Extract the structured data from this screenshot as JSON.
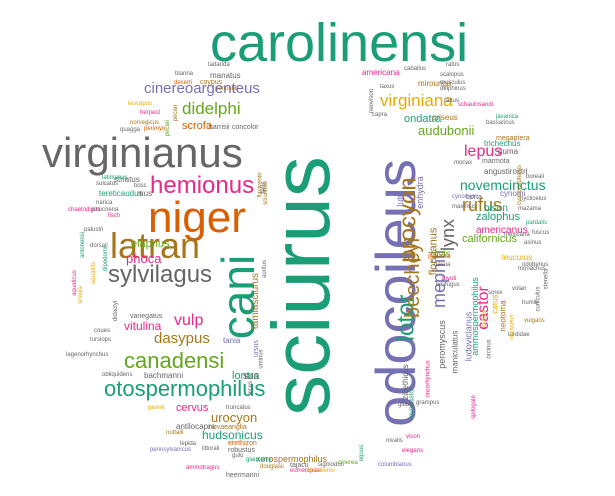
{
  "palette": [
    "#1b9e77",
    "#d95f02",
    "#7570b3",
    "#e7298a",
    "#66a61e",
    "#e6ab02",
    "#a6761d",
    "#666666"
  ],
  "words": {
    "w0": "carolinensi",
    "w1": "sciurus",
    "w2": "odocoileus",
    "w3": "virginianus",
    "w4": "niger",
    "w5": "cani",
    "w6": "latran",
    "w7": "hemionus",
    "w8": "sylvilagus",
    "w9": "procyon",
    "w10": "lotor",
    "w11": "beecheyi",
    "w12": "canadensi",
    "w13": "otospermophilus",
    "w14": "virginiana",
    "w15": "didelphi",
    "w16": "cinereoargenteus",
    "w17": "mephiti",
    "w18": "rufus",
    "w19": "lynx",
    "w20": "castor",
    "w21": "novemcinctus",
    "w22": "audubonii",
    "w23": "lepus",
    "w24": "dasypus",
    "w25": "vulp",
    "w26": "phoca",
    "w27": "vitulina",
    "w28": "elaphus",
    "w29": "cervus",
    "w30": "urocyon",
    "w31": "hudsonicus",
    "w32": "lontra",
    "w33": "sus",
    "w34": "tamiasciurus",
    "w35": "floridanus",
    "w36": "californicus",
    "w37": "americanus",
    "w38": "ovis",
    "w39": "bison",
    "w40": "zalophus",
    "w41": "ondatra",
    "w42": "lutr",
    "w43": "enhydra",
    "w44": "xerospermophilus",
    "w45": "peromyscus",
    "w46": "ludovicianus",
    "w47": "ammospermophilus",
    "w48": "scrofa",
    "w49": "manatus",
    "w50": "coypus",
    "w51": "concolor",
    "w52": "harrisii",
    "w53": "striatus",
    "w54": "tereticaudus",
    "w55": "mus",
    "w56": "tania",
    "w57": "ursus",
    "w58": "bachmanni",
    "w59": "variegatus",
    "w60": "antilocapra",
    "w61": "novaeanglia",
    "w62": "erethizon",
    "w63": "mirounga",
    "w64": "griseus",
    "w65": "trichechus",
    "w66": "puma",
    "w67": "marmota",
    "w68": "cynomi",
    "w69": "monax",
    "w70": "angustirostri",
    "w71": "borta",
    "w72": "leucurus",
    "w73": "monachus",
    "w74": "neotoma",
    "w75": "musculus",
    "w76": "delphinus",
    "w77": "tadarida",
    "w78": "blarina",
    "w79": "deserti",
    "w80": "pennanti",
    "w81": "pecan",
    "w82": "americana",
    "w83": "caballus",
    "w84": "scalopus",
    "w85": "megaptera",
    "w86": "bassaricus",
    "w87": "schaulnsandi",
    "w88": "gulo",
    "w89": "glaucomy",
    "w90": "robustus",
    "w91": "truncatus",
    "w92": "douglasii",
    "w93": "tajacu",
    "w94": "sigmodon",
    "w95": "cinerea",
    "w96": "lagenorhynchus",
    "w97": "obliquidens",
    "w98": "palustri",
    "w99": "nuttalli",
    "w100": "leucopus",
    "w101": "norvegicus",
    "w102": "geomi",
    "w103": "chaetodipus",
    "w104": "dipodomi",
    "w105": "turdidae",
    "w106": "heermanni",
    "w107": "columbianus",
    "w108": "pennsylvanicus",
    "w109": "oncorhynchus",
    "w110": "maniculatus",
    "w111": "zibethicus",
    "w112": "myocastor",
    "w113": "felis",
    "w114": "rattus",
    "w115": "sciurinus",
    "w116": "eumetopias",
    "w117": "pardalis",
    "w118": "alces",
    "w119": "flaviventri",
    "w120": "latimanus",
    "w121": "fisch",
    "w122": "bosc",
    "w123": "sulcatus",
    "w124": "javanica",
    "w125": "dorsali",
    "w126": "sirenia",
    "w127": "ammotragus",
    "w128": "boreali",
    "w129": "maximus",
    "w130": "ratus",
    "w131": "lepida",
    "w132": "littorali",
    "w133": "auritus",
    "w134": "ursinus",
    "w135": "pecari",
    "w136": "capra",
    "w137": "taxus",
    "w138": "herpest",
    "w139": "gibbsi",
    "w140": "nycticeius",
    "w141": "odobenus",
    "w142": "cyanocephalus",
    "w143": "neovison",
    "w144": "quagga",
    "w145": "perimyo",
    "w146": "narica",
    "w147": "phocoena",
    "w148": "asinus",
    "w149": "sorex",
    "w150": "spilogale",
    "w151": "cuniculus",
    "w152": "tursiops",
    "w153": "volan",
    "w154": "orcinus",
    "w155": "antonensi",
    "w156": "aquatilis",
    "w157": "aquaticus",
    "w158": "didactyl",
    "w159": "humili",
    "w160": "nasua",
    "w161": "stenella",
    "w162": "elegans",
    "w163": "brasiliensi",
    "w164": "cynomys",
    "w165": "mazama",
    "w166": "fuscus",
    "w167": "equus",
    "w168": "macrotis",
    "w169": "olivaceus",
    "w170": "coues",
    "w171": "mexicana",
    "w172": "vison",
    "w173": "myoti",
    "w174": "lucifugus",
    "w175": "tamias",
    "w176": "catus",
    "w177": "nivalis",
    "w178": "grampus",
    "w179": "vulgaris"
  }
}
